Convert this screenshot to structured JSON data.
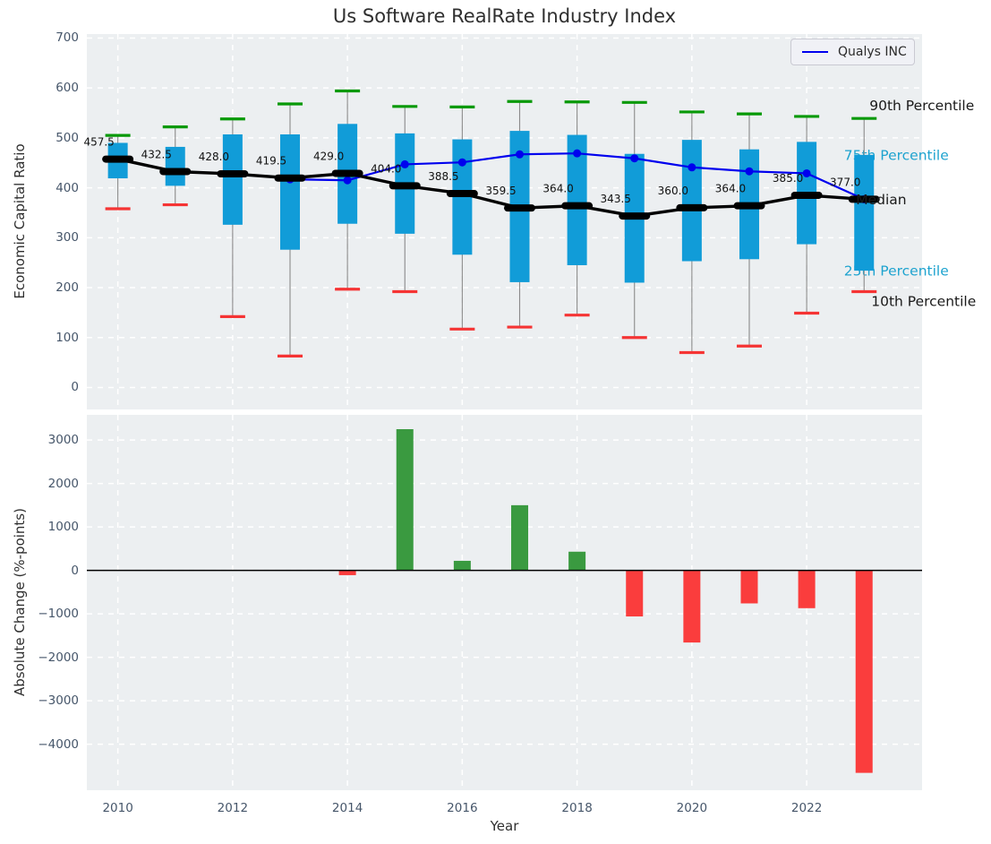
{
  "title": "Us Software RealRate Industry Index",
  "xlabel": "Year",
  "legend": {
    "label": "Qualys INC",
    "line_color": "#0000ee"
  },
  "annotations": {
    "p90_label": "90th Percentile",
    "p75_label": "75th Percentile",
    "median_label": "Median",
    "p25_label": "25th Percentile",
    "p10_label": "10th Percentile"
  },
  "colors": {
    "axes_background": "#eceff1",
    "grid": "#ffffff",
    "box_fill": "#119cd8",
    "whisker": "#8a8a8a",
    "p90_cap": "#079907",
    "p10_cap": "#f53434",
    "median_marker": "#000000",
    "qualys_line": "#0000ee",
    "bar_positive": "#3a9a40",
    "bar_negative": "#fa3d3d",
    "tick_text": "#46566a",
    "cyan_text": "#1ea3cf",
    "black_text": "#1a1a1a"
  },
  "chart_data": [
    {
      "type": "boxplot+line",
      "title": "Us Software RealRate Industry Index",
      "ylabel": "Economic Capital Ratio",
      "ylim": [
        -44,
        708
      ],
      "xlim": [
        2009.46,
        2024.01
      ],
      "yticks": [
        0,
        100,
        200,
        300,
        400,
        500,
        600,
        700
      ],
      "xticks": [
        2010,
        2012,
        2014,
        2016,
        2018,
        2020,
        2022
      ],
      "grid": true,
      "legend_position": "upper right",
      "years": [
        2010,
        2011,
        2012,
        2013,
        2014,
        2015,
        2016,
        2017,
        2018,
        2019,
        2020,
        2021,
        2022,
        2023
      ],
      "p90": [
        505,
        522,
        538,
        568,
        594,
        563,
        562,
        573,
        572,
        571,
        552,
        548,
        543,
        539
      ],
      "p75": [
        490,
        482,
        507,
        507,
        528,
        509,
        497,
        514,
        506,
        468,
        496,
        477,
        492,
        466
      ],
      "median": [
        457.5,
        432.5,
        428.0,
        419.5,
        429.0,
        404.0,
        388.5,
        359.5,
        364.0,
        343.5,
        360.0,
        364.0,
        385.0,
        377.0
      ],
      "p25": [
        419,
        404,
        326,
        276,
        328,
        308,
        266,
        211,
        245,
        210,
        253,
        257,
        287,
        234
      ],
      "p10": [
        358,
        366,
        142,
        63,
        197,
        192,
        117,
        121,
        145,
        100,
        70,
        83,
        149,
        192
      ],
      "series": [
        {
          "name": "Qualys INC",
          "values": [
            null,
            null,
            null,
            417,
            415,
            447,
            451,
            467,
            469,
            459,
            441,
            433,
            429,
            377
          ]
        },
        {
          "name": "Median",
          "values": [
            457.5,
            432.5,
            428.0,
            419.5,
            429.0,
            404.0,
            388.5,
            359.5,
            364.0,
            343.5,
            360.0,
            364.0,
            385.0,
            377.0
          ]
        }
      ]
    },
    {
      "type": "bar",
      "ylabel": "Absolute Change (%-points)",
      "xlabel": "Year",
      "ylim": [
        -5060,
        3580
      ],
      "xlim": [
        2009.46,
        2024.01
      ],
      "yticks": [
        -4000,
        -3000,
        -2000,
        -1000,
        0,
        1000,
        2000,
        3000
      ],
      "xticks": [
        2010,
        2012,
        2014,
        2016,
        2018,
        2020,
        2022
      ],
      "grid": true,
      "categories": [
        2010,
        2011,
        2012,
        2013,
        2014,
        2015,
        2016,
        2017,
        2018,
        2019,
        2020,
        2021,
        2022,
        2023
      ],
      "values": [
        0,
        0,
        0,
        0,
        -110,
        3250,
        220,
        1500,
        430,
        -1060,
        -1660,
        -760,
        -870,
        -4660
      ]
    }
  ]
}
